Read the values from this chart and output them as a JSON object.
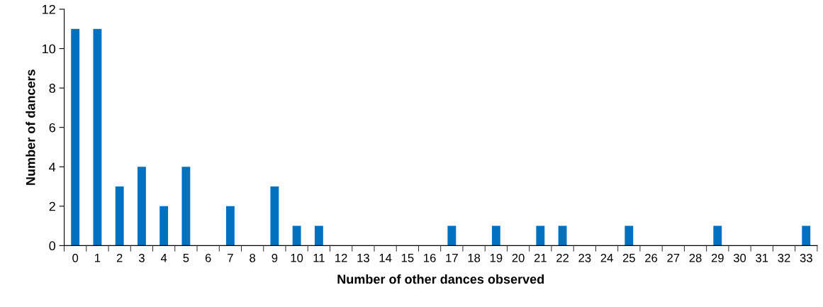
{
  "chart_data": {
    "type": "bar",
    "xlabel": "Number of other dances observed",
    "ylabel": "Number of dancers",
    "categories": [
      "0",
      "1",
      "2",
      "3",
      "4",
      "5",
      "6",
      "7",
      "8",
      "9",
      "10",
      "11",
      "12",
      "13",
      "14",
      "15",
      "16",
      "17",
      "18",
      "19",
      "20",
      "21",
      "22",
      "23",
      "24",
      "25",
      "26",
      "27",
      "28",
      "29",
      "30",
      "31",
      "32",
      "33"
    ],
    "values": [
      11,
      11,
      3,
      4,
      2,
      4,
      0,
      2,
      0,
      3,
      1,
      1,
      0,
      0,
      0,
      0,
      0,
      1,
      0,
      1,
      0,
      1,
      1,
      0,
      0,
      1,
      0,
      0,
      0,
      1,
      0,
      0,
      0,
      1
    ],
    "color": "#0070c0",
    "ylim": [
      0,
      12
    ],
    "yticks": [
      0,
      2,
      4,
      6,
      8,
      10,
      12
    ],
    "grid": false,
    "legend": false
  }
}
